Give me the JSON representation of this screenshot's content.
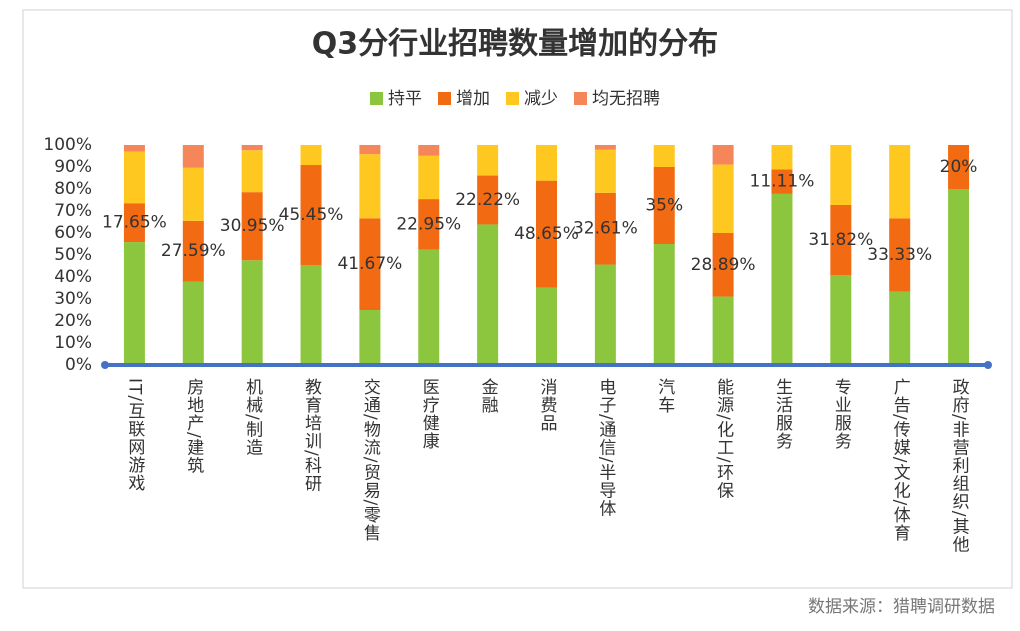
{
  "chart_data": {
    "type": "stacked_bar",
    "title": "Q3分行业招聘数量增加的分布",
    "categories": [
      "IT/互联网游戏",
      "房地产/建筑",
      "机械/制造",
      "教育培训/科研",
      "交通/物流/贸易/零售",
      "医疗健康",
      "金融",
      "消费品",
      "电子/通信/半导体",
      "汽车",
      "能源/化工/环保",
      "生活服务",
      "专业服务",
      "广告/传媒/文化/体育",
      "政府/非营利组织/其他"
    ],
    "series": [
      {
        "name": "持平",
        "color": "#8cc63f",
        "values": [
          55.88,
          37.93,
          47.62,
          45.45,
          25,
          52.46,
          63.89,
          35.14,
          45.65,
          55,
          31.11,
          77.78,
          40.91,
          33.33,
          80
        ]
      },
      {
        "name": "增加",
        "color": "#f26a12",
        "values": [
          17.65,
          27.59,
          30.95,
          45.45,
          41.67,
          22.95,
          22.22,
          48.65,
          32.61,
          35,
          28.89,
          11.11,
          31.82,
          33.33,
          20
        ],
        "value_labels": [
          "17.65%",
          "27.59%",
          "30.95%",
          "45.45%",
          "41.67%",
          "22.95%",
          "22.22%",
          "48.65%",
          "32.61%",
          "35%",
          "28.89%",
          "11.11%",
          "31.82%",
          "33.33%",
          "20%"
        ]
      },
      {
        "name": "减少",
        "color": "#ffc821",
        "values": [
          23.53,
          24.14,
          19.05,
          9.09,
          29.17,
          19.67,
          13.89,
          16.22,
          19.57,
          10,
          31.11,
          11.11,
          27.27,
          33.33,
          0
        ]
      },
      {
        "name": "均无招聘",
        "color": "#f4865a",
        "values": [
          2.94,
          10.34,
          2.38,
          0,
          4.17,
          4.92,
          0,
          0,
          2.17,
          0,
          8.89,
          0,
          0,
          0,
          0
        ]
      }
    ],
    "ylim": [
      0,
      100
    ],
    "yticks": [
      {
        "value": 0,
        "label": "0%"
      },
      {
        "value": 10,
        "label": "10%"
      },
      {
        "value": 20,
        "label": "20%"
      },
      {
        "value": 30,
        "label": "30%"
      },
      {
        "value": 40,
        "label": "40%"
      },
      {
        "value": 50,
        "label": "50%"
      },
      {
        "value": 60,
        "label": "60%"
      },
      {
        "value": 70,
        "label": "70%"
      },
      {
        "value": 80,
        "label": "80%"
      },
      {
        "value": 90,
        "label": "90%"
      },
      {
        "value": 100,
        "label": "100%"
      }
    ],
    "grid": false,
    "legend": "top",
    "source": "数据来源：猎聘调研数据"
  }
}
